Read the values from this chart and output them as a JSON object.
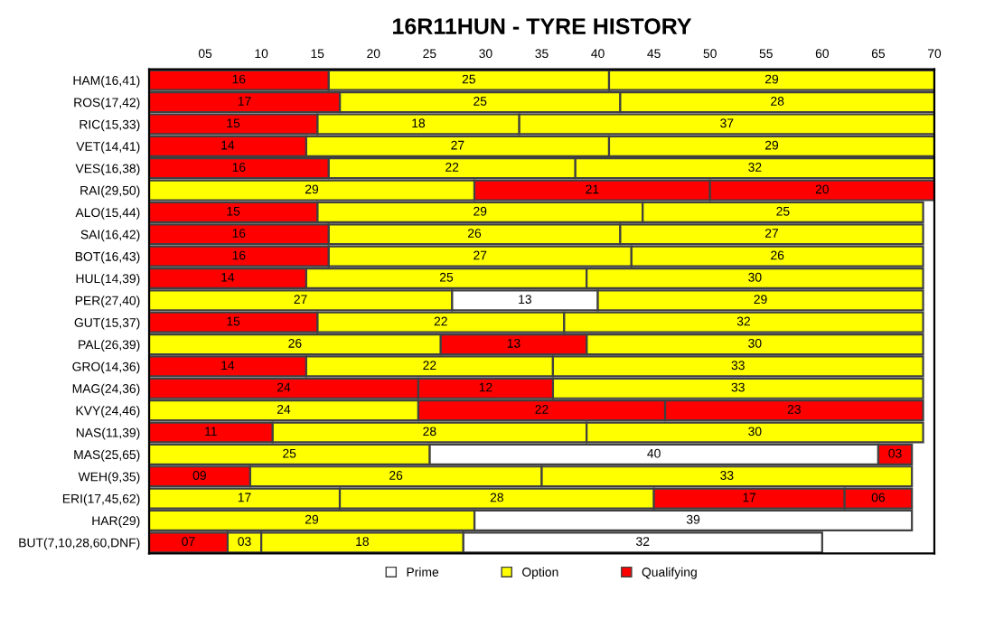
{
  "chart_data": {
    "type": "bar",
    "orientation": "horizontal",
    "title": "16R11HUN - TYRE HISTORY",
    "categories": [
      "HAM(16,41)",
      "ROS(17,42)",
      "RIC(15,33)",
      "VET(14,41)",
      "VES(16,38)",
      "RAI(29,50)",
      "ALO(15,44)",
      "SAI(16,42)",
      "BOT(16,43)",
      "HUL(14,39)",
      "PER(27,40)",
      "GUT(15,37)",
      "PAL(26,39)",
      "GRO(14,36)",
      "MAG(24,36)",
      "KVY(24,46)",
      "NAS(11,39)",
      "MAS(25,65)",
      "WEH(9,35)",
      "ERI(17,45,62)",
      "HAR(29)",
      "BUT(7,10,28,60,DNF)"
    ],
    "series": [
      {
        "name": "Prime",
        "color": "#ffffff",
        "values": [
          null,
          null,
          null,
          null,
          null,
          null,
          null,
          null,
          null,
          null,
          13,
          null,
          null,
          null,
          null,
          null,
          null,
          40,
          null,
          null,
          39,
          32
        ],
        "base": [
          null,
          null,
          null,
          null,
          null,
          null,
          null,
          null,
          null,
          null,
          27,
          null,
          null,
          null,
          null,
          null,
          null,
          25,
          null,
          null,
          29,
          28
        ],
        "value_labels": [
          null,
          null,
          null,
          null,
          null,
          null,
          null,
          null,
          null,
          null,
          "13",
          null,
          null,
          null,
          null,
          null,
          null,
          "40",
          null,
          null,
          "39",
          "32"
        ]
      },
      {
        "name": "Option",
        "color": "#ffff00",
        "values": [
          25,
          25,
          18,
          27,
          22,
          29,
          29,
          26,
          27,
          25,
          27,
          22,
          26,
          22,
          33,
          24,
          28,
          25,
          26,
          17,
          29,
          3
        ],
        "base": [
          16,
          17,
          15,
          14,
          16,
          0,
          15,
          16,
          16,
          14,
          0,
          15,
          0,
          14,
          36,
          0,
          11,
          0,
          9,
          0,
          0,
          7
        ],
        "value_labels": [
          "25",
          "25",
          "18",
          "27",
          "22",
          "29",
          "29",
          "26",
          "27",
          "25",
          "27",
          "22",
          "26",
          "22",
          "33",
          "24",
          "28",
          "25",
          "26",
          "17",
          "29",
          "03"
        ]
      },
      {
        "color": "#ffff00",
        "values": [
          29,
          28,
          37,
          29,
          32,
          null,
          25,
          27,
          26,
          30,
          29,
          32,
          30,
          33,
          null,
          null,
          30,
          null,
          33,
          28,
          null,
          18
        ],
        "base": [
          41,
          42,
          33,
          41,
          38,
          null,
          44,
          42,
          43,
          39,
          40,
          37,
          39,
          36,
          null,
          null,
          39,
          null,
          35,
          17,
          null,
          10
        ],
        "value_labels": [
          "29",
          "28",
          "37",
          "29",
          "32",
          null,
          "25",
          "27",
          "26",
          "30",
          "29",
          "32",
          "30",
          "33",
          null,
          null,
          "30",
          null,
          "33",
          "28",
          null,
          "18"
        ]
      },
      {
        "name": "Qualifying",
        "color": "#ff0000",
        "values": [
          16,
          17,
          15,
          14,
          16,
          21,
          15,
          16,
          16,
          14,
          null,
          15,
          13,
          14,
          24,
          22,
          11,
          3,
          9,
          17,
          null,
          7
        ],
        "base": [
          0,
          0,
          0,
          0,
          0,
          29,
          0,
          0,
          0,
          0,
          null,
          0,
          26,
          0,
          0,
          24,
          0,
          65,
          0,
          45,
          null,
          0
        ],
        "value_labels": [
          "16",
          "17",
          "15",
          "14",
          "16",
          "21",
          "15",
          "16",
          "16",
          "14",
          null,
          "15",
          "13",
          "14",
          "24",
          "22",
          "11",
          "03",
          "09",
          "17",
          null,
          "07"
        ]
      },
      {
        "color": "#ff0000",
        "values": [
          null,
          null,
          null,
          null,
          null,
          20,
          null,
          null,
          null,
          null,
          null,
          null,
          null,
          null,
          12,
          23,
          null,
          null,
          null,
          6,
          null,
          null
        ],
        "base": [
          null,
          null,
          null,
          null,
          null,
          50,
          null,
          null,
          null,
          null,
          null,
          null,
          null,
          null,
          24,
          46,
          null,
          null,
          null,
          62,
          null,
          null
        ],
        "value_labels": [
          null,
          null,
          null,
          null,
          null,
          "20",
          null,
          null,
          null,
          null,
          null,
          null,
          null,
          null,
          "12",
          "23",
          null,
          null,
          null,
          "06",
          null,
          null
        ]
      }
    ],
    "xlim": [
      0,
      70
    ],
    "xticks": [
      {
        "value": 5,
        "label": "05"
      },
      10,
      15,
      20,
      25,
      30,
      35,
      40,
      45,
      50,
      55,
      60,
      65,
      70
    ],
    "legend": "bottom",
    "grid": false
  }
}
